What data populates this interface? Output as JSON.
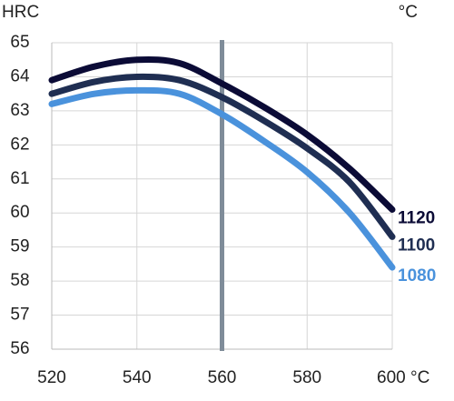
{
  "chart_data": {
    "type": "line",
    "y_label": "HRC",
    "series_label": "°C",
    "x": [
      520,
      530,
      540,
      550,
      560,
      570,
      580,
      590,
      600
    ],
    "xlim": [
      520,
      600
    ],
    "xticks": [
      520,
      540,
      560,
      580,
      {
        "value": 600,
        "label": "600 °C"
      }
    ],
    "ylim": [
      56,
      65
    ],
    "yticks": [
      56,
      57,
      58,
      59,
      60,
      61,
      62,
      63,
      64,
      65
    ],
    "grid": true,
    "vline": 560,
    "series": [
      {
        "name": "1120",
        "color": "#0b0b36",
        "values": [
          63.9,
          64.3,
          64.5,
          64.4,
          63.8,
          63.1,
          62.3,
          61.3,
          60.1
        ]
      },
      {
        "name": "1100",
        "color": "#1f2e52",
        "values": [
          63.5,
          63.85,
          64.0,
          63.9,
          63.4,
          62.7,
          61.9,
          60.9,
          59.3
        ]
      },
      {
        "name": "1080",
        "color": "#4a92dc",
        "values": [
          63.2,
          63.5,
          63.6,
          63.5,
          62.9,
          62.1,
          61.2,
          60.0,
          58.4
        ]
      }
    ]
  }
}
